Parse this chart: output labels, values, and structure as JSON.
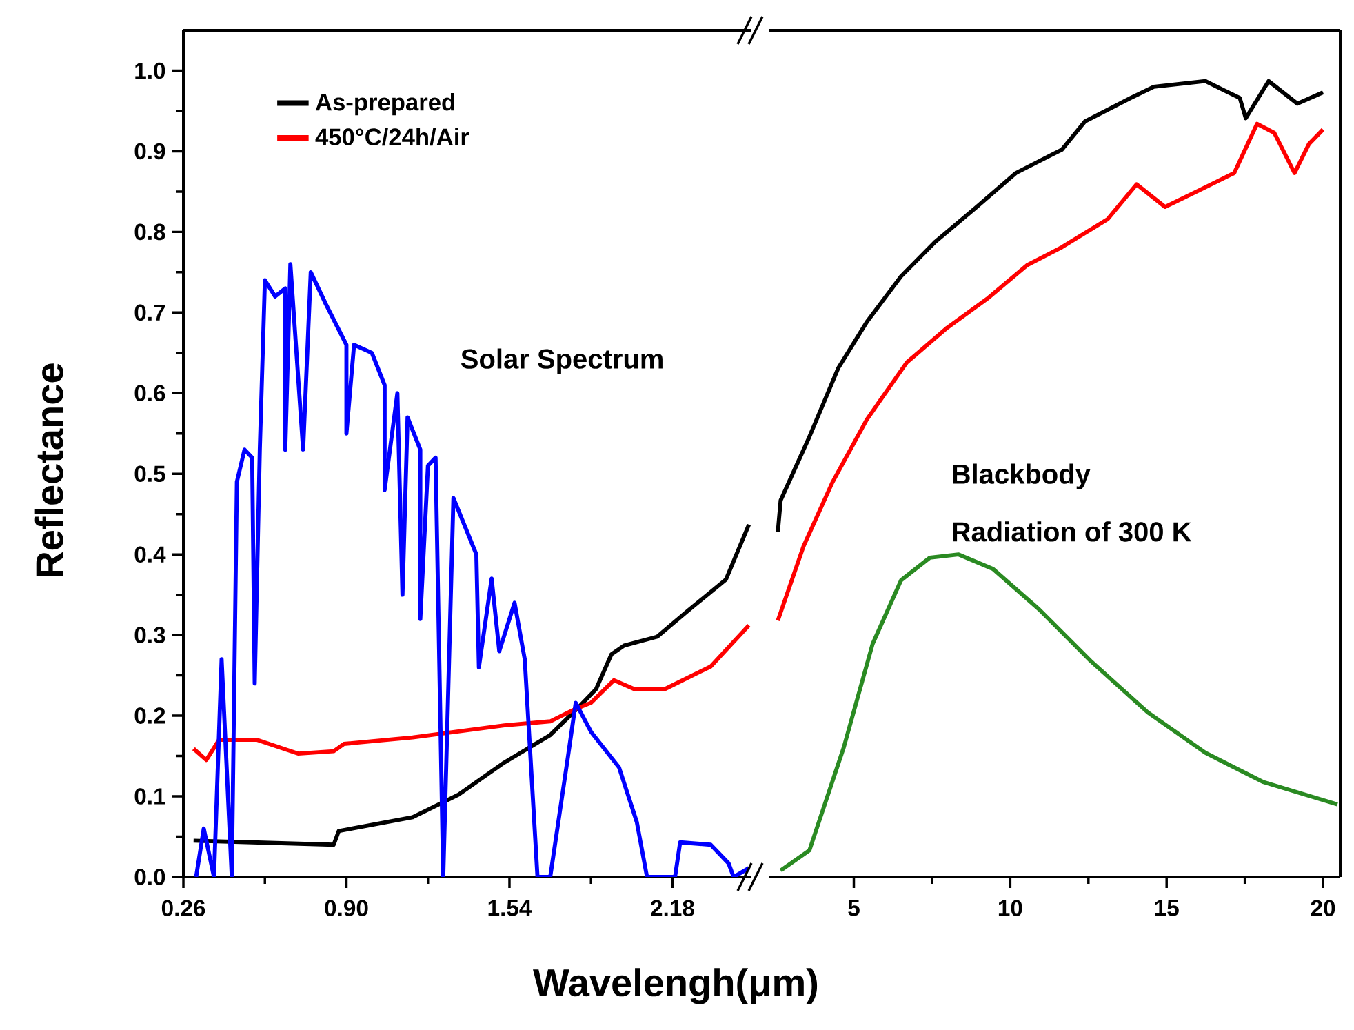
{
  "chart_data": [
    {
      "type": "line",
      "xlabel": "Wavelengh(μm)",
      "ylabel": "Reflectance",
      "annotations": [
        "Solar Spectrum"
      ],
      "legend": "top left",
      "xlim": [
        0.26,
        2.49
      ],
      "xticks": [
        0.26,
        {
          "value": 0.9,
          "label": "0.90"
        },
        1.54,
        2.18
      ],
      "ylim": [
        0,
        1.05
      ],
      "yticks": [
        {
          "value": 0,
          "label": "0.0"
        },
        0.1,
        0.2,
        0.3,
        0.4,
        0.5,
        0.6,
        0.7,
        0.8,
        0.9,
        {
          "value": 1,
          "label": "1.0"
        }
      ],
      "series": [
        {
          "name": "As-prepared",
          "color": "#000000",
          "x": [
            0.3,
            0.53,
            0.85,
            0.87,
            1.16,
            1.34,
            1.52,
            1.7,
            1.81,
            1.88,
            1.94,
            1.99,
            2.12,
            2.24,
            2.39,
            2.48
          ],
          "values": [
            0.045,
            0.043,
            0.04,
            0.057,
            0.074,
            0.102,
            0.142,
            0.176,
            0.21,
            0.233,
            0.276,
            0.287,
            0.298,
            0.33,
            0.369,
            0.437
          ]
        },
        {
          "name": "450°C/24h/Air",
          "color": "#ff0000",
          "x": [
            0.3,
            0.35,
            0.4,
            0.55,
            0.71,
            0.85,
            0.89,
            1.16,
            1.52,
            1.7,
            1.79,
            1.86,
            1.95,
            2.03,
            2.15,
            2.33,
            2.48
          ],
          "values": [
            0.159,
            0.145,
            0.17,
            0.17,
            0.153,
            0.156,
            0.165,
            0.173,
            0.188,
            0.193,
            0.207,
            0.216,
            0.244,
            0.233,
            0.233,
            0.261,
            0.312
          ]
        },
        {
          "color": "#0000ff",
          "x": [
            0.31,
            0.34,
            0.38,
            0.41,
            0.45,
            0.47,
            0.5,
            0.53,
            0.54,
            0.56,
            0.58,
            0.62,
            0.66,
            0.66,
            0.68,
            0.73,
            0.76,
            0.82,
            0.9,
            0.9,
            0.93,
            1.0,
            1.05,
            1.05,
            1.1,
            1.12,
            1.14,
            1.19,
            1.19,
            1.22,
            1.25,
            1.28,
            1.32,
            1.41,
            1.42,
            1.47,
            1.5,
            1.56,
            1.6,
            1.65,
            1.7,
            1.77,
            1.8,
            1.86,
            1.97,
            2.04,
            2.08,
            2.19,
            2.21,
            2.33,
            2.4,
            2.42,
            2.48
          ],
          "values": [
            0,
            0.06,
            0,
            0.27,
            0,
            0.49,
            0.53,
            0.52,
            0.24,
            0.53,
            0.74,
            0.72,
            0.73,
            0.53,
            0.76,
            0.53,
            0.75,
            0.71,
            0.66,
            0.55,
            0.66,
            0.65,
            0.61,
            0.48,
            0.6,
            0.35,
            0.57,
            0.53,
            0.32,
            0.51,
            0.52,
            0,
            0.47,
            0.4,
            0.26,
            0.37,
            0.28,
            0.34,
            0.27,
            0,
            0,
            0.15,
            0.216,
            0.18,
            0.136,
            0.068,
            0,
            0,
            0.043,
            0.04,
            0.017,
            0,
            0.011
          ]
        }
      ]
    },
    {
      "type": "line",
      "annotations": [
        "Blackbody",
        "Radiation of 300 K"
      ],
      "tick_labels": "x",
      "xlim": [
        2.3,
        20.55
      ],
      "xticks": [
        5,
        10,
        15,
        20
      ],
      "ylim": [
        0,
        1.05
      ],
      "series": [
        {
          "color": "#000000",
          "x": [
            2.57,
            2.66,
            3.58,
            4.5,
            5.41,
            6.51,
            7.61,
            8.9,
            10.18,
            11.65,
            12.39,
            13.85,
            14.59,
            16.24,
            17.34,
            17.53,
            18.26,
            19.18,
            20.0
          ],
          "values": [
            0.428,
            0.467,
            0.546,
            0.631,
            0.688,
            0.745,
            0.788,
            0.83,
            0.873,
            0.902,
            0.937,
            0.966,
            0.98,
            0.987,
            0.966,
            0.941,
            0.987,
            0.959,
            0.973
          ]
        },
        {
          "color": "#ff0000",
          "x": [
            2.57,
            3.39,
            4.31,
            5.41,
            6.69,
            7.98,
            9.26,
            10.55,
            11.65,
            13.12,
            14.04,
            14.95,
            16.06,
            17.16,
            17.89,
            18.44,
            19.09,
            19.55,
            20.0
          ],
          "values": [
            0.318,
            0.41,
            0.489,
            0.567,
            0.638,
            0.681,
            0.717,
            0.759,
            0.781,
            0.816,
            0.859,
            0.831,
            0.852,
            0.873,
            0.934,
            0.923,
            0.873,
            0.909,
            0.927
          ]
        },
        {
          "color": "#2a8a22",
          "x": [
            2.66,
            3.58,
            4.68,
            5.6,
            6.51,
            7.43,
            8.35,
            9.45,
            10.92,
            12.57,
            14.4,
            16.24,
            18.07,
            20.46
          ],
          "values": [
            0.008,
            0.033,
            0.161,
            0.289,
            0.368,
            0.396,
            0.4,
            0.382,
            0.332,
            0.268,
            0.204,
            0.154,
            0.118,
            0.09
          ]
        }
      ]
    }
  ]
}
